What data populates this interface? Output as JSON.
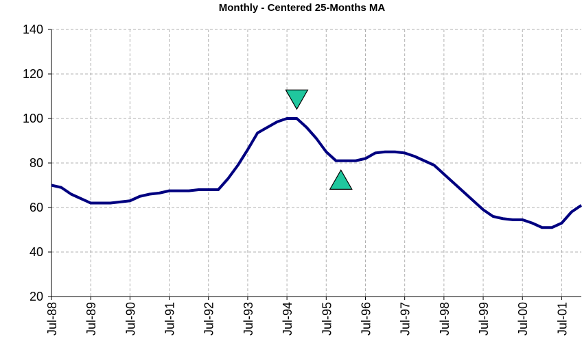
{
  "chart_data": {
    "type": "line",
    "title": "Monthly - Centered 25-Months MA",
    "categories": [
      "Jul-88",
      null,
      null,
      null,
      "Jul-89",
      null,
      null,
      null,
      "Jul-90",
      null,
      null,
      null,
      "Jul-91",
      null,
      null,
      null,
      "Jul-92",
      null,
      null,
      null,
      "Jul-93",
      null,
      null,
      null,
      "Jul-94",
      null,
      null,
      null,
      "Jul-95",
      null,
      null,
      null,
      "Jul-96",
      null,
      null,
      null,
      "Jul-97",
      null,
      null,
      null,
      "Jul-98",
      null,
      null,
      null,
      "Jul-99",
      null,
      null,
      null,
      "Jul-00",
      null,
      null,
      null,
      "Jul-01",
      null,
      null
    ],
    "series": [
      {
        "color": "#000080",
        "values": [
          70,
          69,
          66,
          64,
          62,
          62,
          62,
          62.5,
          63,
          65,
          66,
          66.5,
          67.5,
          67.5,
          67.5,
          68,
          68,
          68,
          73,
          79,
          86,
          93.5,
          96,
          98.5,
          100,
          100,
          96,
          91,
          85,
          81,
          81,
          81,
          82,
          84.5,
          85,
          85,
          84.5,
          83,
          81,
          79,
          75,
          71,
          67,
          63,
          59,
          56,
          55,
          54.5,
          54.5,
          53,
          51,
          51,
          53,
          58,
          61
        ]
      }
    ],
    "markers": [
      {
        "shape": "triangle-down",
        "index": 25,
        "value": 108.5,
        "color": "#20c79e"
      },
      {
        "shape": "triangle-up",
        "index": 29.5,
        "value": 72.5,
        "color": "#20c79e"
      }
    ],
    "ylim": [
      20,
      140
    ],
    "yticks": [
      20,
      40,
      60,
      80,
      100,
      120,
      140
    ],
    "grid": true
  }
}
